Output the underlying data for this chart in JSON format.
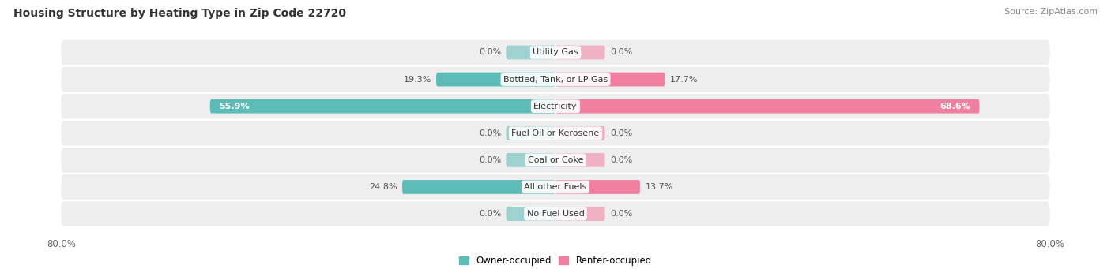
{
  "title": "Housing Structure by Heating Type in Zip Code 22720",
  "source": "Source: ZipAtlas.com",
  "categories": [
    "Utility Gas",
    "Bottled, Tank, or LP Gas",
    "Electricity",
    "Fuel Oil or Kerosene",
    "Coal or Coke",
    "All other Fuels",
    "No Fuel Used"
  ],
  "owner_values": [
    0.0,
    19.3,
    55.9,
    0.0,
    0.0,
    24.8,
    0.0
  ],
  "renter_values": [
    0.0,
    17.7,
    68.6,
    0.0,
    0.0,
    13.7,
    0.0
  ],
  "owner_color": "#5bbcb8",
  "renter_color": "#f07fa0",
  "owner_label": "Owner-occupied",
  "renter_label": "Renter-occupied",
  "xlim_left": -80,
  "xlim_right": 80,
  "title_fontsize": 10,
  "source_fontsize": 8,
  "label_fontsize": 8,
  "cat_fontsize": 8,
  "bar_height": 0.52,
  "row_bg_color": "#eeeeee",
  "zero_bar_width": 8
}
